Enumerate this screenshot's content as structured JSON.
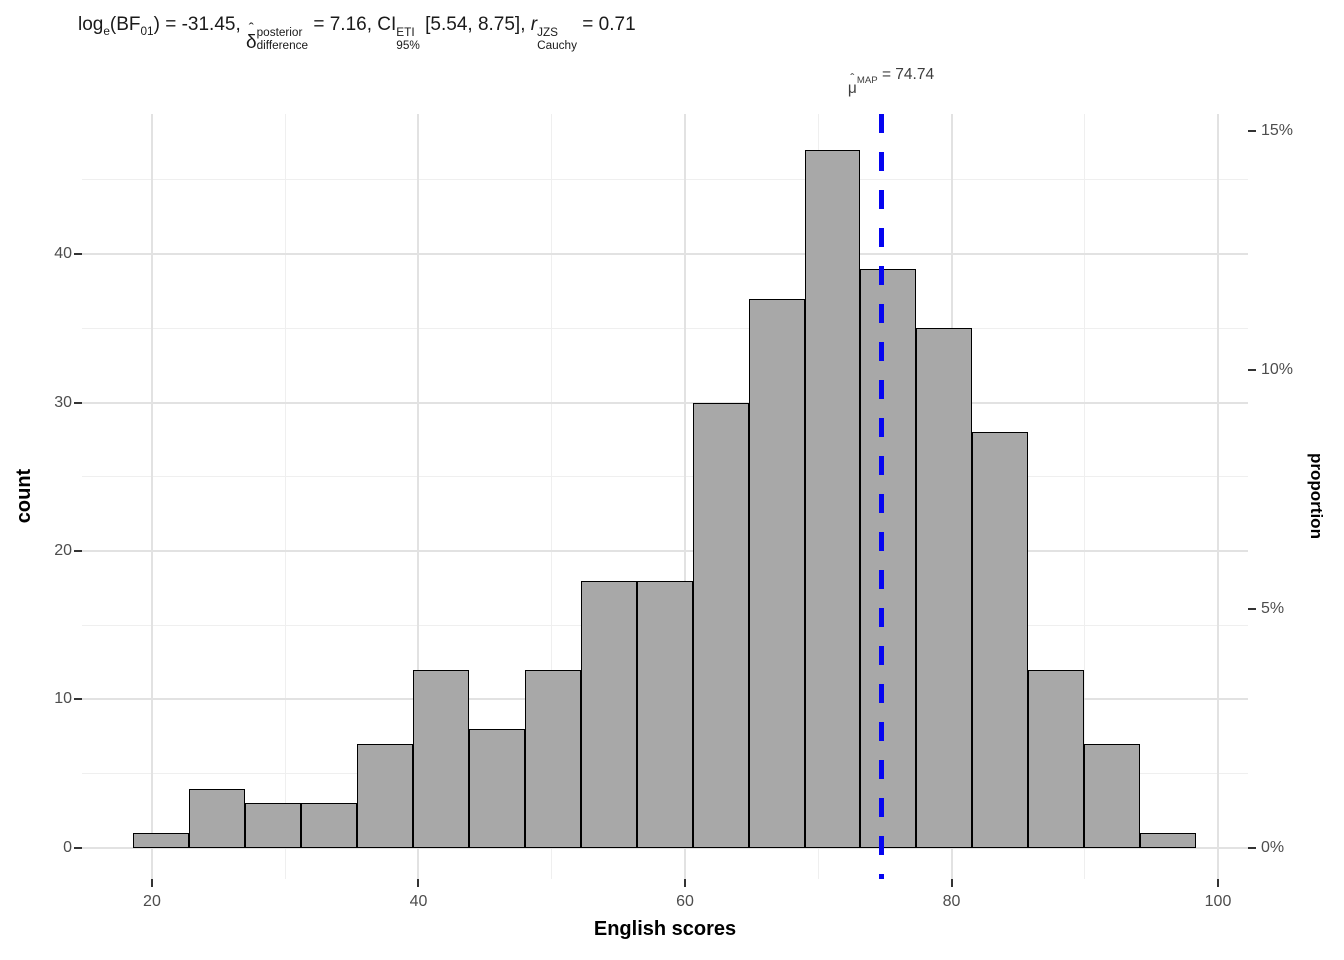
{
  "chart_data": {
    "type": "bar",
    "subtype": "histogram",
    "title_plain": "log_e(BF_01) = -31.45, delta-hat^posterior_difference = 7.16, CI^ETI_95% [5.54, 8.75], r^JZS_Cauchy = 0.71",
    "title_parts": [
      {
        "t": "log"
      },
      {
        "sub": "e"
      },
      {
        "t": "(BF"
      },
      {
        "sub": "01"
      },
      {
        "t": ") = -31.45, "
      },
      {
        "hat": "δ"
      },
      {
        "stack": [
          "posterior",
          "difference"
        ]
      },
      {
        "t": " = 7.16, CI"
      },
      {
        "stack": [
          "ETI",
          "95%"
        ]
      },
      {
        "t": " [5.54, 8.75], "
      },
      {
        "t": "r",
        "i": true
      },
      {
        "stack": [
          "JZS",
          "Cauchy"
        ]
      },
      {
        "t": " = 0.71"
      }
    ],
    "x_axis": {
      "title": "English scores",
      "domain": [
        14.75,
        102.25
      ],
      "major_breaks": [
        20,
        40,
        60,
        80,
        100
      ],
      "major_labels": [
        "20",
        "40",
        "60",
        "80",
        "100"
      ],
      "minor_breaks": [
        30,
        50,
        70,
        90
      ]
    },
    "y_axis": {
      "title": "count",
      "domain": [
        -2.09,
        49.43
      ],
      "major_breaks": [
        0,
        10,
        20,
        30,
        40
      ],
      "major_labels": [
        "0",
        "10",
        "20",
        "30",
        "40"
      ],
      "minor_breaks": [
        5,
        15,
        25,
        35,
        45
      ]
    },
    "y2_axis": {
      "title": "proportion",
      "breaks_pct": [
        0,
        5,
        10,
        15
      ],
      "labels": [
        "0%",
        "5%",
        "10%",
        "15%"
      ]
    },
    "n_total": 322,
    "bins": {
      "start": 18.57,
      "width": 4.2
    },
    "counts": [
      1,
      4,
      3,
      3,
      7,
      12,
      8,
      12,
      18,
      18,
      30,
      37,
      47,
      39,
      35,
      28,
      12,
      7,
      1
    ],
    "map_line": {
      "x": 74.74,
      "value_label": "74.74",
      "label_parts": [
        {
          "hat": "μ"
        },
        {
          "sub": "MAP"
        },
        {
          "t": " = 74.74"
        }
      ]
    },
    "style": {
      "bar_fill": "#A8A8A8",
      "bar_stroke": "#000000",
      "grid_major": "#E2E2E2",
      "grid_minor": "#EFEFEF",
      "tick_color": "#333333",
      "tick_label_color": "#4D4D4D",
      "title_color": "#1A1A1A",
      "map_label_color": "#3D3D3D",
      "map_line_color": "#0505F0",
      "background": "#FFFFFF"
    },
    "legend": "none",
    "grid": "on"
  }
}
